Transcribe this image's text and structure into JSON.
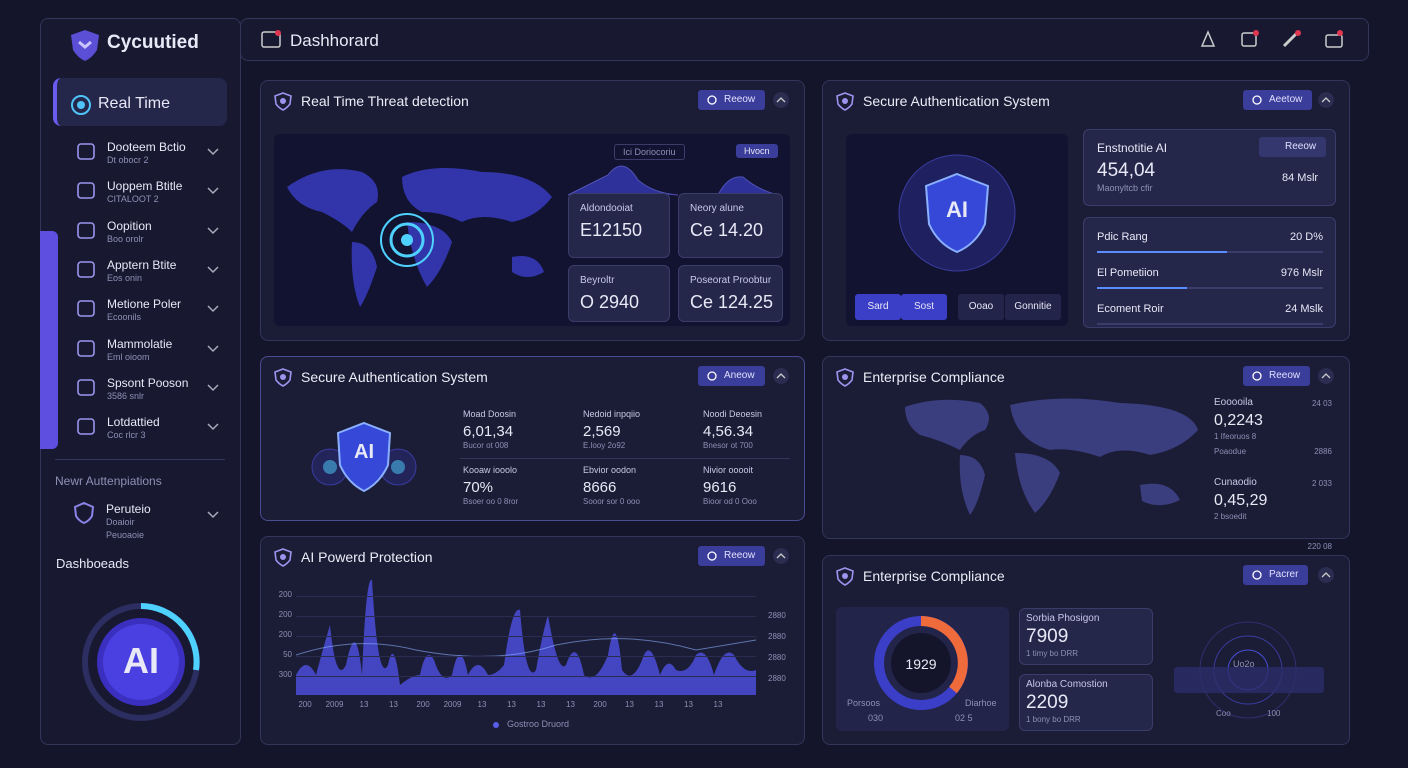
{
  "brand": "Cycuutied",
  "header": {
    "title": "Dashhorard"
  },
  "sidebar": {
    "active": "Real Time",
    "items": [
      {
        "label": "Dooteem Bctio",
        "sub": "Dt obocr 2"
      },
      {
        "label": "Uoppem Btitle",
        "sub": "CITALOOT 2"
      },
      {
        "label": "Oopition",
        "sub": "Boo orolr"
      },
      {
        "label": "Apptern Btite",
        "sub": "Eos onin"
      },
      {
        "label": "Metione Poler",
        "sub": "Ecoonils"
      },
      {
        "label": "Mammolatie",
        "sub": "Eml oioom"
      },
      {
        "label": "Spsont Pooson",
        "sub": "3586 snlr"
      },
      {
        "label": "Lotdattied",
        "sub": "Coc rlcr 3"
      }
    ],
    "section": "Newr Auttenpiations",
    "section_item": {
      "label": "Peruteio",
      "sub": [
        "Doaioir",
        "Peuoaoie"
      ]
    },
    "dashboards": "Dashboeads",
    "badge": "AI"
  },
  "threat": {
    "title": "Real Time Threat detection",
    "button": "Reeow",
    "chips": [
      "Ici  Doriocoriu",
      "Hvocn"
    ],
    "stats": [
      {
        "label": "Aldondooiat",
        "value": "E12150"
      },
      {
        "label": "Neory alune",
        "value": "Ce 14.20"
      },
      {
        "label": "Beyroltr",
        "value": "O 2940"
      },
      {
        "label": "Poseorat Proobtur",
        "value": "Ce 124.25"
      }
    ]
  },
  "auth_top": {
    "title": "Secure Authentication System",
    "button": "Aeetow",
    "shield": "AI",
    "tabs": [
      "Sard",
      "Sost",
      "Ooao",
      "Gonnitie"
    ],
    "card": {
      "label": "Enstnotitie AI",
      "button": "Reeow",
      "value": "454,04",
      "sub": "Maonyltcb cfir",
      "right": "84 Mslr"
    },
    "rows": [
      {
        "label": "Pdic Rang",
        "value": "20 D%"
      },
      {
        "label": "El Pometiion",
        "value": "976 Mslr"
      },
      {
        "label": "Ecoment Roir",
        "value": "24 Mslk"
      }
    ]
  },
  "auth_mid": {
    "title": "Secure Authentication System",
    "button": "Aneow",
    "badge": "AI",
    "stats": [
      {
        "label": "Moad Doosin",
        "value": "6,01,34",
        "sub": "Bucor ot 008"
      },
      {
        "label": "Nedoid inpqiio",
        "value": "2,569",
        "sub": "E.looy 2o92"
      },
      {
        "label": "Noodi Deoesin",
        "value": "4,56.34",
        "sub": "Bnesor ot 700"
      },
      {
        "label": "Kooaw iooolo",
        "value": "70%",
        "sub": "Bsoer oo 0 8ror"
      },
      {
        "label": "Ebvior oodon",
        "value": "8666",
        "sub": "Sooor sor 0 ooo"
      },
      {
        "label": "Nivior ooooit",
        "value": "9616",
        "sub": "Bioor od 0 Ooo"
      }
    ]
  },
  "compliance_mid": {
    "title": "Enterprise Compliance",
    "button": "Reeow",
    "stats": [
      {
        "label": "Eooooila",
        "right": "24 03",
        "value": "0,2243",
        "sub": "1 Ifeoruos 8",
        "foot": "Poaodue",
        "foot_right": "2886"
      },
      {
        "label": "Cunaodio",
        "right": "2 033",
        "value": "0,45,29",
        "sub": "2 bsoedit",
        "foot_right": "220 08"
      }
    ]
  },
  "protection": {
    "title": "AI Powerd Protection",
    "button": "Reeow",
    "y_labels": [
      "200",
      "200",
      "200",
      "50",
      "300"
    ],
    "y2_labels": [
      "2880",
      "2880",
      "2880",
      "2880"
    ],
    "x_labels": [
      "200",
      "2009",
      "13",
      "13",
      "200",
      "2009",
      "13",
      "13",
      "13",
      "13",
      "200",
      "13",
      "13",
      "13",
      "13"
    ],
    "legend": "Gostroo Druord"
  },
  "compliance_bottom": {
    "title": "Enterprise Compliance",
    "button": "Pacrer",
    "donut": {
      "center": "1929",
      "left_label": "Porsoos",
      "left_value": "030",
      "right_label": "Diarhoe",
      "right_value": "02 5"
    },
    "cards": [
      {
        "label": "Sorbia Phosigon",
        "value": "7909",
        "sub": "1 timy bo DRR"
      },
      {
        "label": "Alonba Comostion",
        "value": "2209",
        "sub": "1 bony bo DRR"
      }
    ],
    "gauge": {
      "center": "Uo2o",
      "left": "Coo",
      "right": "100"
    }
  }
}
